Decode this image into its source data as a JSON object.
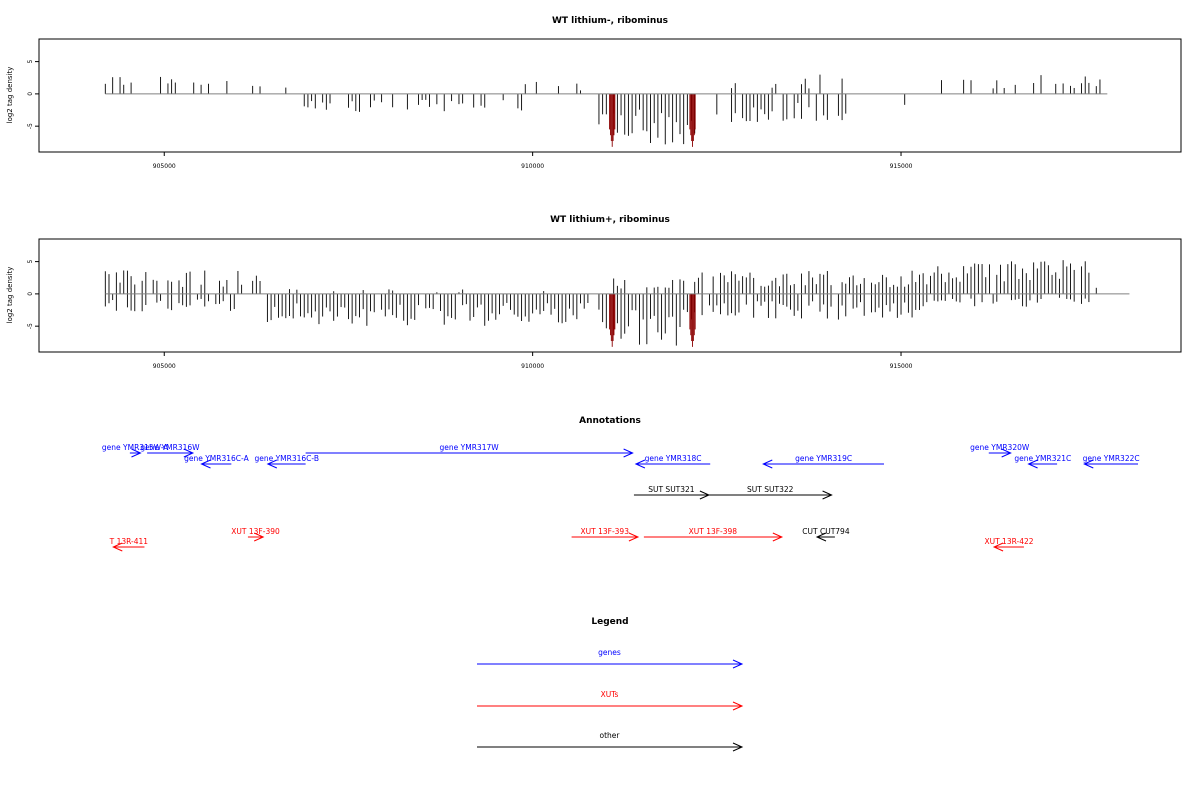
{
  "colors": {
    "gene": "#0000ff",
    "xut": "#ff0000",
    "other": "#000000",
    "highlight": "#8b0000",
    "axis": "#000000",
    "baseline": "#808080"
  },
  "chart_data": [
    {
      "type": "bar",
      "title": "WT lithium-, ribominus",
      "ylabel": "log2 tag density",
      "xlim": [
        903300,
        918800
      ],
      "ylim": [
        -9,
        8.5
      ],
      "xticks": [
        905000,
        910000,
        915000
      ],
      "yticks": [
        5,
        0,
        -5
      ],
      "profile": {
        "start": 904200,
        "end": 917800,
        "step": 50,
        "segments": [
          {
            "from": 904200,
            "to": 905900,
            "dir": 1,
            "amp": 2.6,
            "density": 0.35
          },
          {
            "from": 905900,
            "to": 906900,
            "dir": 1,
            "amp": 1.2,
            "density": 0.08
          },
          {
            "from": 906900,
            "to": 909900,
            "dir": -1,
            "amp": 2.3,
            "density": 0.5
          },
          {
            "from": 909900,
            "to": 910800,
            "dir": 1,
            "amp": 1.5,
            "density": 0.15
          },
          {
            "from": 910900,
            "to": 912250,
            "dir": -1,
            "amp": 6.5,
            "density": 1.0
          },
          {
            "from": 912250,
            "to": 912600,
            "dir": -1,
            "amp": 3.5,
            "density": 0.3
          },
          {
            "from": 912700,
            "to": 914300,
            "dir": -1,
            "amp": 3.5,
            "density": 0.7
          },
          {
            "from": 912700,
            "to": 914300,
            "dir": 1,
            "amp": 2.4,
            "density": 0.25
          },
          {
            "from": 914300,
            "to": 915500,
            "dir": -1,
            "amp": 1.6,
            "density": 0.2
          },
          {
            "from": 915500,
            "to": 917800,
            "dir": 1,
            "amp": 2.4,
            "density": 0.45
          }
        ],
        "highlights": [
          911080,
          912170
        ]
      }
    },
    {
      "type": "bar",
      "title": "WT lithium+, ribominus",
      "ylabel": "log2 tag density",
      "xlim": [
        903300,
        918800
      ],
      "ylim": [
        -9,
        8.5
      ],
      "xticks": [
        905000,
        910000,
        915000
      ],
      "yticks": [
        5,
        0,
        -5
      ],
      "profile": {
        "start": 904200,
        "end": 918100,
        "step": 50,
        "segments": [
          {
            "from": 904200,
            "to": 906400,
            "dir": 1,
            "amp": 3.0,
            "density": 0.7
          },
          {
            "from": 904200,
            "to": 906400,
            "dir": -1,
            "amp": 2.2,
            "density": 0.6
          },
          {
            "from": 906400,
            "to": 910800,
            "dir": -1,
            "amp": 4.0,
            "density": 0.95
          },
          {
            "from": 906400,
            "to": 910800,
            "dir": 1,
            "amp": 0.6,
            "density": 0.1
          },
          {
            "from": 910900,
            "to": 912250,
            "dir": -1,
            "amp": 6.5,
            "density": 1.0
          },
          {
            "from": 910800,
            "to": 912300,
            "dir": 1,
            "amp": 2.0,
            "density": 0.5
          },
          {
            "from": 912300,
            "to": 915400,
            "dir": 1,
            "amp": 3.0,
            "density": 0.85
          },
          {
            "from": 912300,
            "to": 915400,
            "dir": -1,
            "amp": 3.2,
            "density": 0.85
          },
          {
            "from": 915400,
            "to": 917600,
            "dir": 1,
            "amp": 4.2,
            "density": 0.95
          },
          {
            "from": 915400,
            "to": 917600,
            "dir": -1,
            "amp": 1.6,
            "density": 0.6
          },
          {
            "from": 917600,
            "to": 918100,
            "dir": 1,
            "amp": 1.2,
            "density": 0.1
          }
        ],
        "highlights": [
          911080,
          912170
        ]
      }
    }
  ],
  "annotations": {
    "title": "Annotations",
    "features": [
      {
        "label": "gene YMR315W-A",
        "kind": "gene",
        "from": 904870,
        "to": 905030,
        "strand": "+",
        "row": 0
      },
      {
        "label": "gene YMR316W",
        "kind": "gene",
        "from": 905130,
        "to": 905820,
        "strand": "+",
        "row": 0
      },
      {
        "label": "gene YMR316C-A",
        "kind": "gene",
        "from": 905950,
        "to": 906400,
        "strand": "-",
        "row": 1
      },
      {
        "label": "gene YMR316C-B",
        "kind": "gene",
        "from": 906950,
        "to": 907520,
        "strand": "-",
        "row": 1
      },
      {
        "label": "gene YMR317W",
        "kind": "gene",
        "from": 907520,
        "to": 912450,
        "strand": "+",
        "row": 0
      },
      {
        "label": "gene YMR318C",
        "kind": "gene",
        "from": 912500,
        "to": 913620,
        "strand": "-",
        "row": 1
      },
      {
        "label": "gene YMR319C",
        "kind": "gene",
        "from": 914420,
        "to": 916240,
        "strand": "-",
        "row": 1
      },
      {
        "label": "gene YMR320W",
        "kind": "gene",
        "from": 917820,
        "to": 918150,
        "strand": "+",
        "row": 0
      },
      {
        "label": "gene YMR321C",
        "kind": "gene",
        "from": 918420,
        "to": 918850,
        "strand": "-",
        "row": 1
      },
      {
        "label": "gene YMR322C",
        "kind": "gene",
        "from": 919260,
        "to": 920070,
        "strand": "-",
        "row": 1
      },
      {
        "label": "SUT SUT321",
        "kind": "other",
        "from": 912470,
        "to": 913600,
        "strand": "+",
        "row": 3
      },
      {
        "label": "SUT SUT322",
        "kind": "other",
        "from": 913600,
        "to": 915450,
        "strand": "+",
        "row": 3
      },
      {
        "label": "CUT CUT794",
        "kind": "other",
        "from": 915230,
        "to": 915500,
        "strand": "-",
        "row": 5
      },
      {
        "label": "T 13R-411",
        "kind": "xut",
        "from": 904620,
        "to": 905090,
        "strand": "-",
        "row": 6
      },
      {
        "label": "XUT 13F-390",
        "kind": "xut",
        "from": 906650,
        "to": 906880,
        "strand": "+",
        "row": 5
      },
      {
        "label": "XUT 13F-393",
        "kind": "xut",
        "from": 911530,
        "to": 912530,
        "strand": "+",
        "row": 5
      },
      {
        "label": "XUT 13F-398",
        "kind": "xut",
        "from": 912620,
        "to": 914700,
        "strand": "+",
        "row": 5
      },
      {
        "label": "XUT 13R-422",
        "kind": "xut",
        "from": 917900,
        "to": 918350,
        "strand": "-",
        "row": 6
      }
    ]
  },
  "legend": {
    "title": "Legend",
    "items": [
      {
        "label": "genes",
        "kind": "gene"
      },
      {
        "label": "XUTs",
        "kind": "xut"
      },
      {
        "label": "other",
        "kind": "other"
      }
    ]
  }
}
